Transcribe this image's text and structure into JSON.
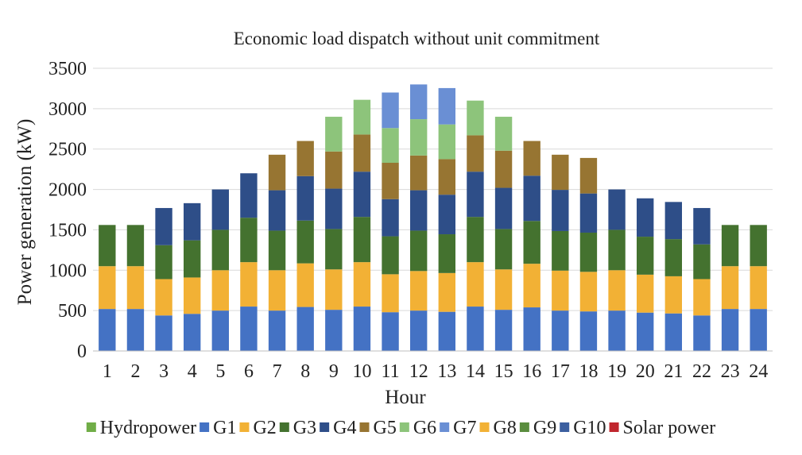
{
  "chart_data": {
    "type": "bar",
    "stacked": true,
    "title": "Economic load dispatch without unit commitment",
    "xlabel": "Hour",
    "ylabel": "Power generation (kW)",
    "ylim": [
      0,
      3500
    ],
    "yticks": [
      0,
      500,
      1000,
      1500,
      2000,
      2500,
      3000,
      3500
    ],
    "grid": true,
    "legend_position": "bottom",
    "categories": [
      "1",
      "2",
      "3",
      "4",
      "5",
      "6",
      "7",
      "8",
      "9",
      "10",
      "11",
      "12",
      "13",
      "14",
      "15",
      "16",
      "17",
      "18",
      "19",
      "20",
      "21",
      "22",
      "23",
      "24"
    ],
    "series": [
      {
        "name": "Hydropower",
        "color": "#70AD47",
        "values": [
          0,
          0,
          0,
          0,
          0,
          0,
          0,
          0,
          0,
          0,
          0,
          0,
          0,
          0,
          0,
          0,
          0,
          0,
          0,
          0,
          0,
          0,
          0,
          0
        ]
      },
      {
        "name": "G1",
        "color": "#4472C4",
        "values": [
          520,
          520,
          440,
          460,
          500,
          550,
          500,
          545,
          510,
          550,
          480,
          500,
          485,
          550,
          510,
          540,
          500,
          490,
          500,
          475,
          465,
          440,
          520,
          520
        ]
      },
      {
        "name": "G2",
        "color": "#F2B135",
        "values": [
          530,
          530,
          450,
          450,
          500,
          550,
          500,
          540,
          500,
          550,
          470,
          490,
          480,
          550,
          500,
          540,
          495,
          490,
          500,
          470,
          460,
          450,
          530,
          530
        ]
      },
      {
        "name": "G3",
        "color": "#44722F",
        "values": [
          510,
          510,
          420,
          460,
          500,
          550,
          490,
          530,
          500,
          560,
          470,
          500,
          480,
          560,
          500,
          530,
          490,
          485,
          500,
          470,
          460,
          430,
          510,
          510
        ]
      },
      {
        "name": "G4",
        "color": "#2E4E88",
        "values": [
          0,
          0,
          460,
          460,
          500,
          550,
          500,
          550,
          500,
          560,
          460,
          500,
          490,
          560,
          510,
          560,
          510,
          485,
          500,
          475,
          460,
          450,
          0,
          0
        ]
      },
      {
        "name": "G5",
        "color": "#977532",
        "values": [
          0,
          0,
          0,
          0,
          0,
          0,
          440,
          435,
          460,
          460,
          450,
          430,
          440,
          450,
          460,
          430,
          435,
          440,
          0,
          0,
          0,
          0,
          0,
          0
        ]
      },
      {
        "name": "G6",
        "color": "#8DC47B",
        "values": [
          0,
          0,
          0,
          0,
          0,
          0,
          0,
          0,
          430,
          430,
          430,
          450,
          430,
          430,
          420,
          0,
          0,
          0,
          0,
          0,
          0,
          0,
          0,
          0
        ]
      },
      {
        "name": "G7",
        "color": "#6A8FD4",
        "values": [
          0,
          0,
          0,
          0,
          0,
          0,
          0,
          0,
          0,
          0,
          440,
          430,
          450,
          0,
          0,
          0,
          0,
          0,
          0,
          0,
          0,
          0,
          0,
          0
        ]
      },
      {
        "name": "G8",
        "color": "#F2B135",
        "values": [
          0,
          0,
          0,
          0,
          0,
          0,
          0,
          0,
          0,
          0,
          0,
          0,
          0,
          0,
          0,
          0,
          0,
          0,
          0,
          0,
          0,
          0,
          0,
          0
        ]
      },
      {
        "name": "G9",
        "color": "#5A8D3E",
        "values": [
          0,
          0,
          0,
          0,
          0,
          0,
          0,
          0,
          0,
          0,
          0,
          0,
          0,
          0,
          0,
          0,
          0,
          0,
          0,
          0,
          0,
          0,
          0,
          0
        ]
      },
      {
        "name": "G10",
        "color": "#3C5FA0",
        "values": [
          0,
          0,
          0,
          0,
          0,
          0,
          0,
          0,
          0,
          0,
          0,
          0,
          0,
          0,
          0,
          0,
          0,
          0,
          0,
          0,
          0,
          0,
          0,
          0
        ]
      },
      {
        "name": "Solar power",
        "color": "#C0262D",
        "values": [
          0,
          0,
          0,
          0,
          0,
          0,
          0,
          0,
          0,
          0,
          0,
          0,
          0,
          0,
          0,
          0,
          0,
          0,
          0,
          0,
          0,
          0,
          0,
          0
        ]
      }
    ]
  }
}
